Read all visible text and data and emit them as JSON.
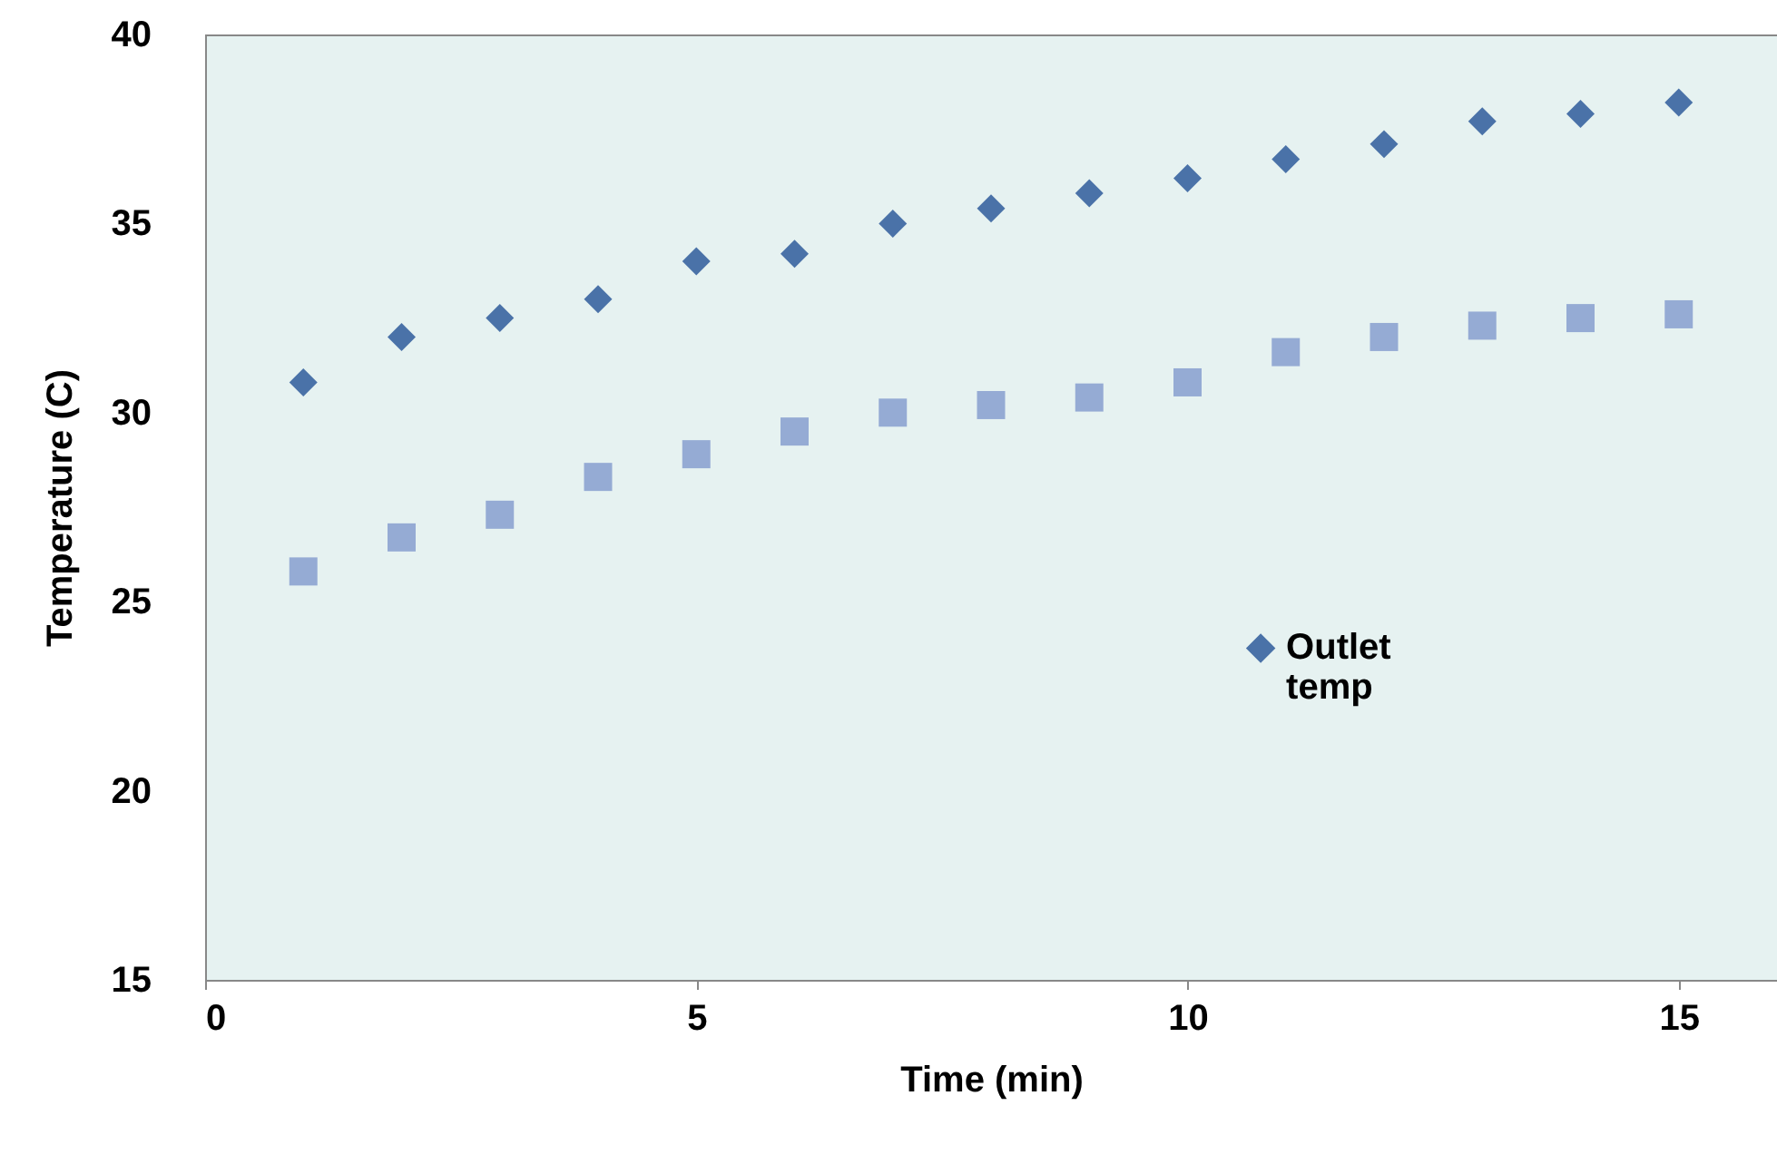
{
  "chart_data": {
    "type": "scatter",
    "xlabel": "Time (min)",
    "ylabel": "Temperature (C)",
    "x": [
      1,
      2,
      3,
      4,
      5,
      6,
      7,
      8,
      9,
      10,
      11,
      12,
      13,
      14,
      15
    ],
    "series": [
      {
        "name": "Outlet temp",
        "color": "#4a72a8",
        "marker": "diamond",
        "values": [
          30.8,
          32.0,
          32.5,
          33.0,
          34.0,
          34.2,
          35.0,
          35.4,
          35.8,
          36.2,
          36.7,
          37.1,
          37.7,
          37.9,
          38.2
        ]
      },
      {
        "color": "#95abd4",
        "marker": "square",
        "values": [
          25.8,
          26.7,
          27.3,
          28.3,
          28.9,
          29.5,
          30.0,
          30.2,
          30.4,
          30.8,
          31.6,
          32.0,
          32.3,
          32.5,
          32.6
        ]
      }
    ],
    "xlim": [
      0,
      16
    ],
    "xticks": [
      0,
      5,
      10,
      15
    ],
    "ylim": [
      15,
      40
    ],
    "yticks": [
      15,
      20,
      25,
      30,
      35,
      40
    ],
    "grid": false,
    "legend": "right"
  }
}
